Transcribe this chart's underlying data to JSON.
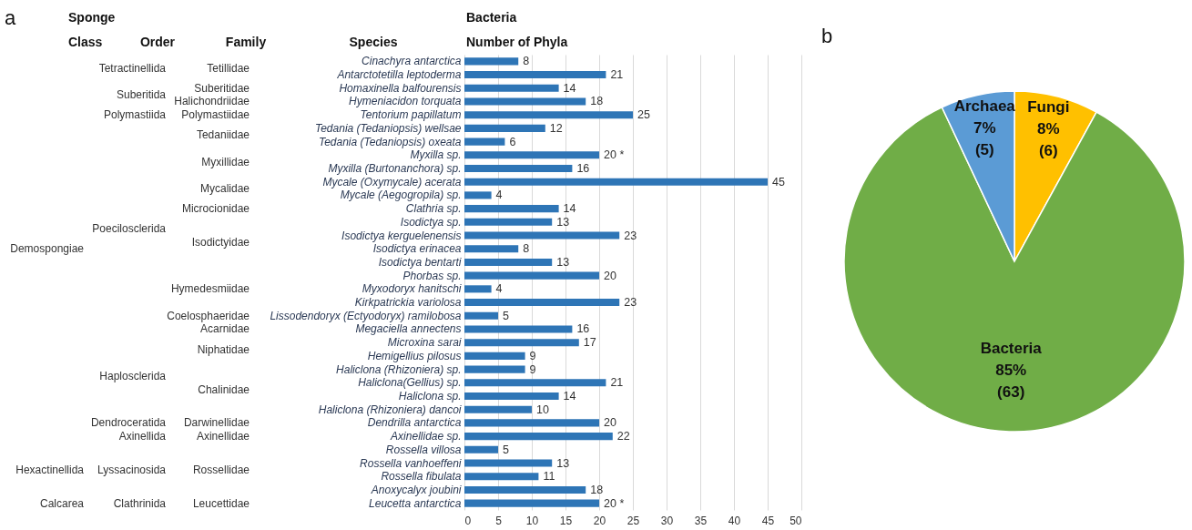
{
  "chart_data": [
    {
      "type": "bar",
      "orientation": "horizontal",
      "title": "Bacteria",
      "subtitle": "Number of Phyla",
      "categories": [
        "Cinachyra antarctica",
        "Antarctotetilla leptoderma",
        "Homaxinella balfourensis",
        "Hymeniacidon torquata",
        "Tentorium papillatum",
        "Tedania (Tedaniopsis) wellsae",
        "Tedania (Tedaniopsis) oxeata",
        "Myxilla sp.",
        "Myxilla (Burtonanchora) sp.",
        "Mycale (Oxymycale) acerata",
        "Mycale (Aegogropila) sp.",
        "Clathria sp.",
        "Isodictya sp.",
        "Isodictya kerguelenensis",
        "Isodictya erinacea",
        "Isodictya bentarti",
        "Phorbas sp.",
        "Myxodoryx hanitschi",
        "Kirkpatrickia variolosa",
        "Lissodendoryx (Ectyodoryx) ramilobosa",
        "Megaciella annectens",
        "Microxina sarai",
        "Hemigellius pilosus",
        "Haliclona (Rhizoniera) sp.",
        "Haliclona(Gellius) sp.",
        "Haliclona sp.",
        "Haliclona (Rhizoniera) dancoi",
        "Dendrilla antarctica",
        "Axinellidae sp.",
        "Rossella villosa",
        "Rossella vanhoeffeni",
        "Rossella fibulata",
        "Anoxycalyx joubini",
        "Leucetta antarctica"
      ],
      "values": [
        8,
        21,
        14,
        18,
        25,
        12,
        6,
        20,
        16,
        45,
        4,
        14,
        13,
        23,
        8,
        13,
        20,
        4,
        23,
        5,
        16,
        17,
        9,
        9,
        21,
        14,
        10,
        20,
        22,
        5,
        13,
        11,
        18,
        20
      ],
      "value_labels": [
        "8",
        "21",
        "14",
        "18",
        "25",
        "12",
        "6",
        "20 *",
        "16",
        "45",
        "4",
        "14",
        "13",
        "23",
        "8",
        "13",
        "20",
        "4",
        "23",
        "5",
        "16",
        "17",
        "9",
        "9",
        "21",
        "14",
        "10",
        "20",
        "22",
        "5",
        "13",
        "11",
        "18",
        "20 *"
      ],
      "color": "#2e75b6",
      "xlim": [
        0,
        50
      ],
      "xticks": [
        0,
        5,
        10,
        15,
        20,
        25,
        30,
        35,
        40,
        45,
        50
      ],
      "grid": "x",
      "annotations": [
        "a",
        "Sponge",
        "Class",
        "Order",
        "Family",
        "Species",
        "Demospongiae",
        "Hexactinellida",
        "Calcarea",
        "Tetractinellida",
        "Suberitida",
        "Polymastiida",
        "Poecilosclerida",
        "Haplosclerida",
        "Dendroceratida",
        "Axinellida",
        "Lyssacinosida",
        "Clathrinida",
        "Tetillidae",
        "Suberitidae",
        "Halichondriidae",
        "Polymastiidae",
        "Tedaniidae",
        "Myxillidae",
        "Mycalidae",
        "Microcionidae",
        "Isodictyidae",
        "Hymedesmiidae",
        "Coelosphaeridae",
        "Acarnidae",
        "Niphatidae",
        "Chalinidae",
        "Darwinellidae",
        "Axinellidae",
        "Rossellidae",
        "Leucettidae"
      ]
    },
    {
      "type": "pie",
      "categories": [
        "Fungi",
        "Bacteria",
        "Archaea"
      ],
      "values": [
        8,
        85,
        7
      ],
      "colors": [
        "#ffc000",
        "#70ad47",
        "#5b9bd5"
      ],
      "value_labels": [
        "8% (6)",
        "85% (63)",
        "7% (5)"
      ],
      "annotations": [
        "b"
      ]
    }
  ]
}
